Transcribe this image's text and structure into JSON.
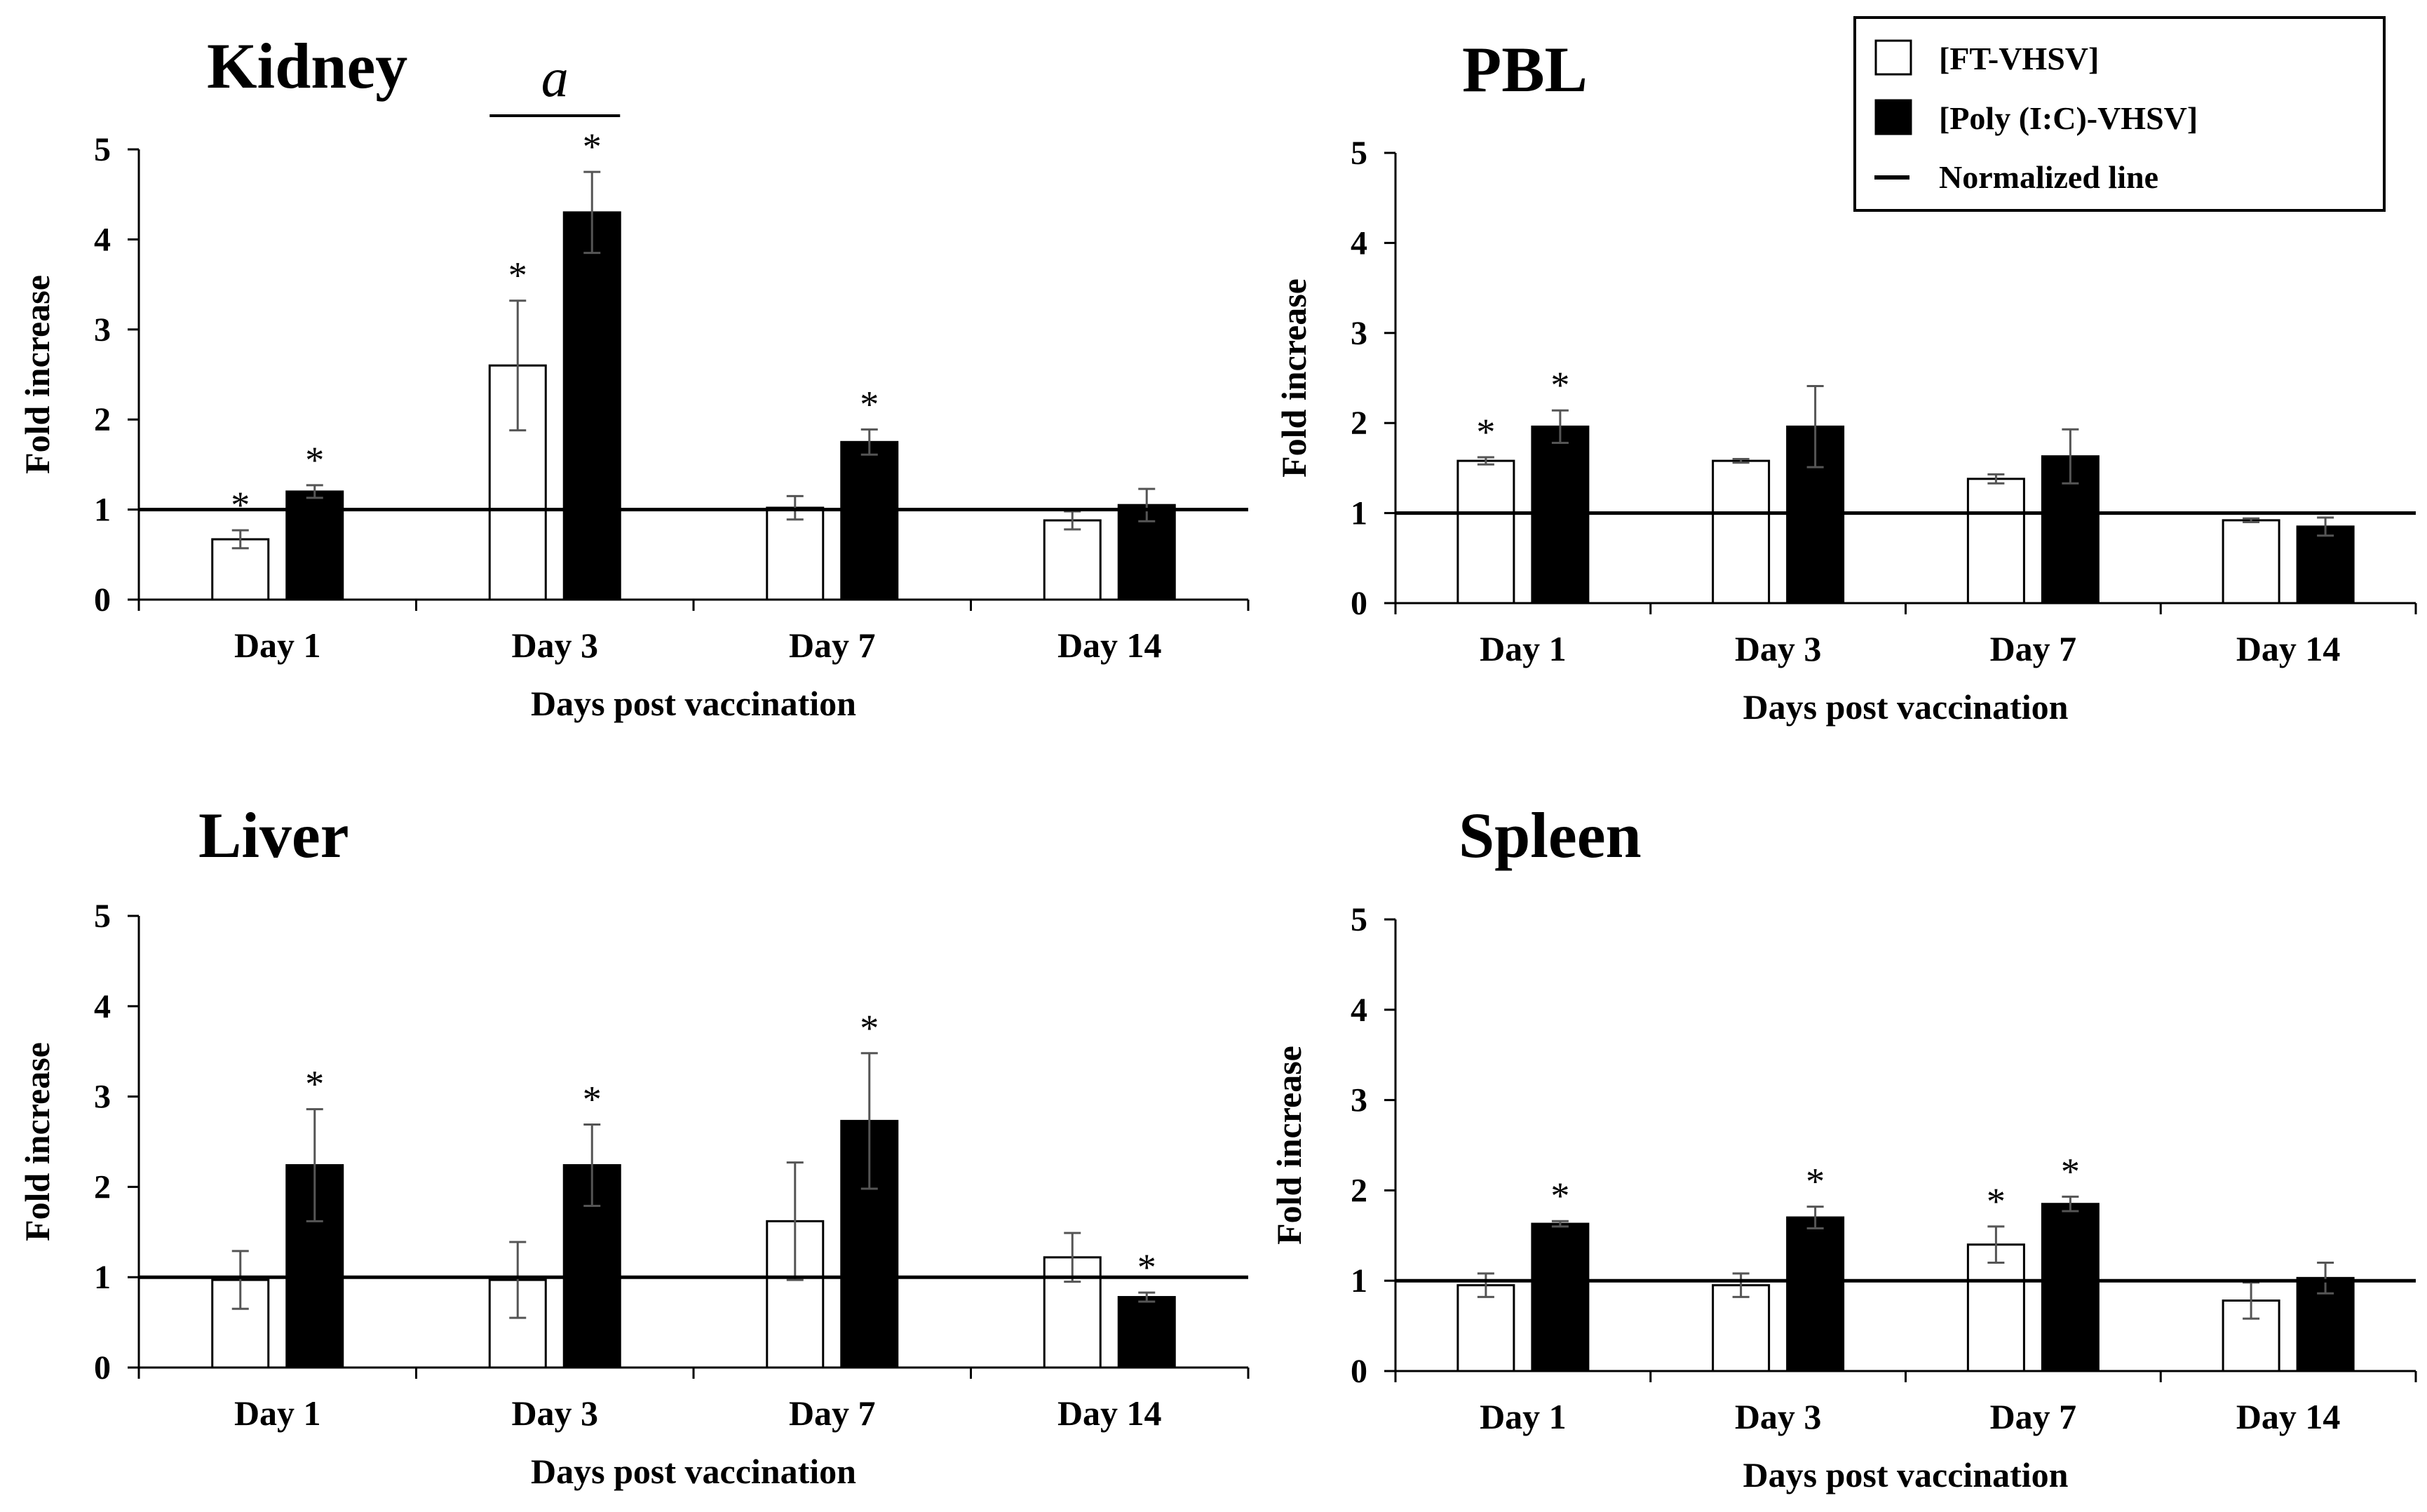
{
  "legend": {
    "items": [
      {
        "label": "[FT-VHSV]",
        "kind": "open-bar"
      },
      {
        "label": "[Poly (I:C)-VHSV]",
        "kind": "filled-bar"
      },
      {
        "label": "Normalized line",
        "kind": "line"
      }
    ]
  },
  "chart_data": [
    {
      "type": "bar",
      "title": "Kidney",
      "xlabel": "Days post vaccination",
      "ylabel": "Fold increase",
      "ylim": [
        0,
        5
      ],
      "yticks": [
        "0",
        "1",
        "2",
        "3",
        "4",
        "5"
      ],
      "normalized_value": 1,
      "categories": [
        "Day 1",
        "Day 3",
        "Day 7",
        "Day 14"
      ],
      "series": [
        {
          "name": "[FT-VHSV]",
          "values": [
            0.67,
            2.6,
            1.02,
            0.88
          ],
          "errors": [
            0.1,
            0.72,
            0.13,
            0.1
          ],
          "significant": [
            true,
            true,
            false,
            false
          ]
        },
        {
          "name": "[Poly (I:C)-VHSV]",
          "values": [
            1.2,
            4.3,
            1.75,
            1.05
          ],
          "errors": [
            0.07,
            0.45,
            0.14,
            0.18
          ],
          "significant": [
            true,
            true,
            true,
            false
          ]
        }
      ],
      "annotation": {
        "text": "a",
        "category_index": 1
      }
    },
    {
      "type": "bar",
      "title": "PBL",
      "xlabel": "Days post vaccination",
      "ylabel": "Fold increase",
      "ylim": [
        0,
        5
      ],
      "yticks": [
        "0",
        "1",
        "2",
        "3",
        "4",
        "5"
      ],
      "normalized_value": 1,
      "categories": [
        "Day 1",
        "Day 3",
        "Day 7",
        "Day 14"
      ],
      "series": [
        {
          "name": "[FT-VHSV]",
          "values": [
            1.58,
            1.58,
            1.38,
            0.92
          ],
          "errors": [
            0.04,
            0.02,
            0.05,
            0.02
          ],
          "significant": [
            true,
            false,
            false,
            false
          ]
        },
        {
          "name": "[Poly (I:C)-VHSV]",
          "values": [
            1.96,
            1.96,
            1.63,
            0.85
          ],
          "errors": [
            0.18,
            0.45,
            0.3,
            0.1
          ],
          "significant": [
            true,
            false,
            false,
            false
          ]
        }
      ]
    },
    {
      "type": "bar",
      "title": "Liver",
      "xlabel": "Days post vaccination",
      "ylabel": "Fold increase",
      "ylim": [
        0,
        5
      ],
      "yticks": [
        "0",
        "1",
        "2",
        "3",
        "4",
        "5"
      ],
      "normalized_value": 1,
      "categories": [
        "Day 1",
        "Day 3",
        "Day 7",
        "Day 14"
      ],
      "series": [
        {
          "name": "[FT-VHSV]",
          "values": [
            0.97,
            0.97,
            1.62,
            1.22
          ],
          "errors": [
            0.32,
            0.42,
            0.65,
            0.27
          ],
          "significant": [
            false,
            false,
            false,
            false
          ]
        },
        {
          "name": "[Poly (I:C)-VHSV]",
          "values": [
            2.24,
            2.24,
            2.73,
            0.78
          ],
          "errors": [
            0.62,
            0.45,
            0.75,
            0.05
          ],
          "significant": [
            true,
            true,
            true,
            true
          ]
        }
      ]
    },
    {
      "type": "bar",
      "title": "Spleen",
      "xlabel": "Days post vaccination",
      "ylabel": "Fold increase",
      "ylim": [
        0,
        5
      ],
      "yticks": [
        "0",
        "1",
        "2",
        "3",
        "4",
        "5"
      ],
      "normalized_value": 1,
      "categories": [
        "Day 1",
        "Day 3",
        "Day 7",
        "Day 14"
      ],
      "series": [
        {
          "name": "[FT-VHSV]",
          "values": [
            0.95,
            0.95,
            1.4,
            0.78
          ],
          "errors": [
            0.13,
            0.13,
            0.2,
            0.2
          ],
          "significant": [
            false,
            false,
            true,
            false
          ]
        },
        {
          "name": "[Poly (I:C)-VHSV]",
          "values": [
            1.63,
            1.7,
            1.85,
            1.03
          ],
          "errors": [
            0.03,
            0.12,
            0.08,
            0.17
          ],
          "significant": [
            true,
            true,
            true,
            false
          ]
        }
      ]
    }
  ]
}
